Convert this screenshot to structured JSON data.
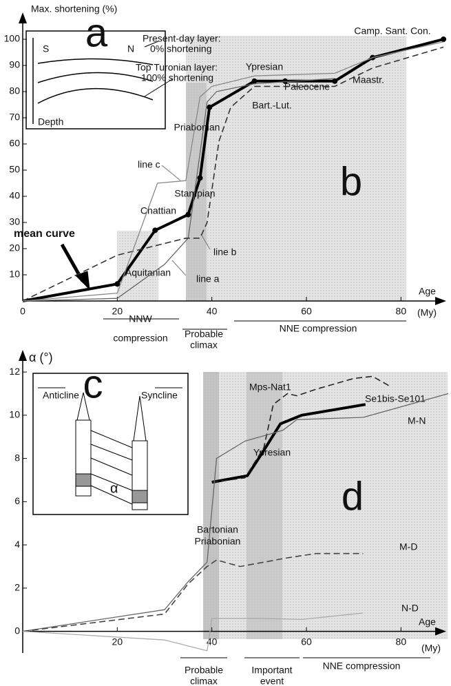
{
  "chart_data": [
    {
      "type": "line",
      "y_label": "Max. shortening (%)",
      "x_label": "Age",
      "x_unit_label": "(My)",
      "xlim": [
        0,
        90
      ],
      "ylim": [
        0,
        105
      ],
      "xticks": [
        0,
        20,
        40,
        60,
        80
      ],
      "yticks": [
        10,
        20,
        30,
        40,
        50,
        60,
        70,
        80,
        90,
        100
      ],
      "series": [
        {
          "name": "mean curve",
          "color": "#000000",
          "style": "thick",
          "markers": true,
          "x": [
            0,
            20,
            28,
            35,
            37.5,
            39.5,
            49,
            55.5,
            66,
            74,
            89
          ],
          "values": [
            0,
            6.5,
            27,
            33,
            47,
            74,
            84,
            84,
            84,
            93,
            100
          ]
        },
        {
          "name": "line a",
          "color": "#666666",
          "style": "thin",
          "markers": false,
          "x": [
            0,
            20,
            30,
            35,
            37,
            39,
            41,
            49,
            66
          ],
          "values": [
            0,
            1,
            14,
            24,
            50,
            76,
            80,
            83,
            85
          ]
        },
        {
          "name": "line b",
          "color": "#333333",
          "style": "dashed",
          "markers": false,
          "x": [
            0,
            20,
            34.5,
            37.5,
            39,
            41.5,
            44,
            49,
            66,
            74,
            89
          ],
          "values": [
            0,
            17.5,
            24,
            24,
            30,
            61,
            74,
            82,
            82,
            89,
            97
          ]
        },
        {
          "name": "line c",
          "color": "#888888",
          "style": "thin",
          "markers": false,
          "x": [
            0,
            20,
            28.5,
            34.5,
            37.5,
            40,
            49,
            66,
            74,
            89
          ],
          "values": [
            0,
            3,
            45,
            46,
            78,
            82,
            86,
            87,
            93,
            99
          ]
        }
      ],
      "annotations": [
        "Camp. Sant. Con.",
        "Ypresian",
        "Maastr.",
        "Paleocene",
        "Bart.-Lut.",
        "Priabonian",
        "Stampian",
        "Chattian",
        "Aquitanian",
        "b",
        "NNW",
        "compression",
        "Probable",
        "climax",
        "NNE compression"
      ],
      "inset": {
        "label": "a",
        "left": "S",
        "right": "N",
        "top_layer": [
          "Present-day layer:",
          "0% shortening"
        ],
        "bottom_layer": [
          "Top Turonian layer:",
          "100% shortening"
        ],
        "axis": "Depth"
      }
    },
    {
      "type": "line",
      "y_label": "α (°)",
      "x_label": "Age",
      "x_unit_label": "(My)",
      "xlim": [
        0,
        90
      ],
      "ylim": [
        -1,
        12.8
      ],
      "xticks": [
        20,
        40,
        60,
        80
      ],
      "yticks": [
        0,
        2,
        4,
        6,
        8,
        10,
        12
      ],
      "series": [
        {
          "name": "Se1bis-Se101",
          "color": "#000000",
          "style": "thick",
          "markers": false,
          "x": [
            40,
            47.5,
            50.5,
            54.5,
            59,
            72.5
          ],
          "values": [
            6.9,
            7.2,
            8.2,
            9.6,
            10.0,
            10.5
          ]
        },
        {
          "name": "Mps-Nat1",
          "color": "#222222",
          "style": "dashed",
          "markers": false,
          "x": [
            40,
            47,
            51,
            53,
            56,
            58,
            62,
            70,
            74,
            78
          ],
          "values": [
            6.9,
            7.1,
            8.5,
            10.5,
            11.0,
            10.9,
            11.2,
            11.7,
            11.8,
            11.3
          ]
        },
        {
          "name": "M-N",
          "color": "#666666",
          "style": "thin",
          "markers": false,
          "x": [
            0,
            30,
            35,
            39,
            41,
            47,
            55,
            58,
            72,
            90
          ],
          "values": [
            0,
            1.0,
            2.3,
            3.2,
            8.0,
            8.8,
            9.3,
            9.8,
            9.9,
            11
          ]
        },
        {
          "name": "M-D",
          "color": "#444444",
          "style": "dashed",
          "markers": false,
          "x": [
            0,
            30,
            35,
            39,
            41,
            46,
            56,
            62,
            72
          ],
          "values": [
            0,
            0.8,
            2.2,
            3.0,
            3.3,
            3.0,
            3.4,
            3.6,
            3.6
          ]
        },
        {
          "name": "N-D",
          "color": "#aaaaaa",
          "style": "thin",
          "markers": false,
          "x": [
            0,
            30,
            39,
            40,
            50,
            59,
            72
          ],
          "values": [
            0,
            -0.4,
            -0.9,
            0.6,
            0.6,
            0.55,
            0.85
          ]
        }
      ],
      "annotations": [
        "Ypresian",
        "d",
        "Bartonian",
        "Priabonian",
        "Probable",
        "climax",
        "Important",
        "event",
        "NNE compression"
      ],
      "inset": {
        "label": "c",
        "left": "Anticline",
        "right": "Syncline",
        "angle": "α"
      }
    }
  ]
}
